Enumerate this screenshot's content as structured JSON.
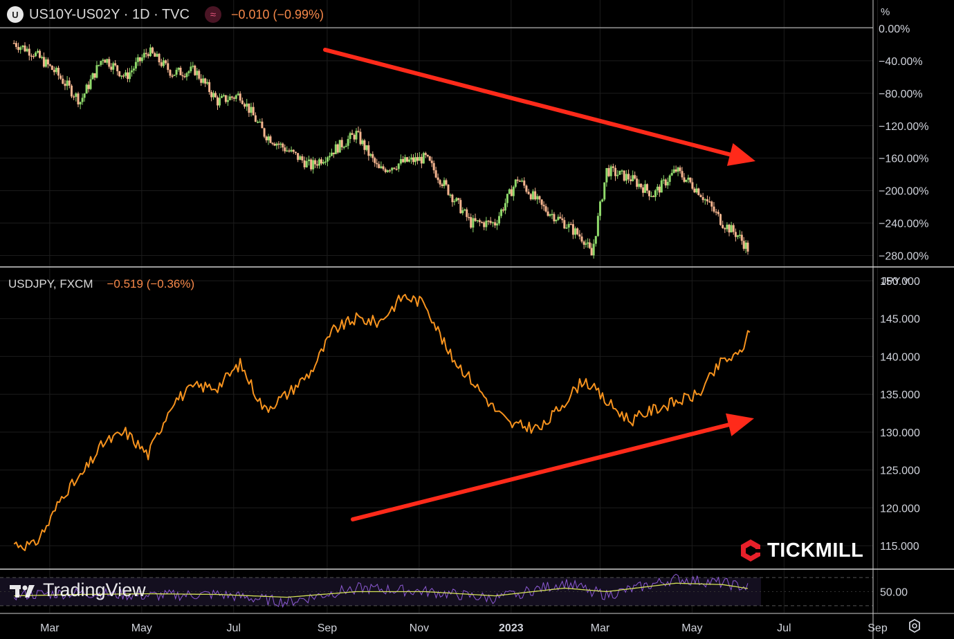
{
  "top_pane": {
    "symbol_badge": "U",
    "title": "US10Y-US02Y · 1D · TVC",
    "change": "−0.010 (−0.99%)",
    "unit": "%",
    "icon": "wave-indicator-icon"
  },
  "mid_pane": {
    "title": "USDJPY, FXCM",
    "change": "−0.519 (−0.36%)",
    "unit": "JPY ˅"
  },
  "branding": {
    "tickmill": "TICKMILL",
    "tradingview": "TradingView"
  },
  "colors": {
    "background": "#000000",
    "up_candle": "#8fd96b",
    "down_candle": "#f5b58f",
    "usdjpy_line": "#f7931e",
    "arrow": "#ff2a1a",
    "rsi_line": "#8e5bd6",
    "rsi_ma": "#d4e157"
  },
  "chart_data": [
    {
      "type": "candlestick",
      "title": "US10Y-US02Y · 1D · TVC",
      "ylabel": "%",
      "ylim": [
        -300,
        0
      ],
      "yticks": [
        "0.00%",
        "−40.00%",
        "−80.00%",
        "−120.00%",
        "−160.00%",
        "−200.00%",
        "−240.00%",
        "−280.00%"
      ],
      "ytick_values": [
        0,
        -40,
        -80,
        -120,
        -160,
        -200,
        -240,
        -280
      ],
      "x": [
        "2022-02-20",
        "2022-03-05",
        "2022-03-20",
        "2022-04-05",
        "2022-04-20",
        "2022-05-05",
        "2022-05-20",
        "2022-06-05",
        "2022-06-20",
        "2022-07-05",
        "2022-07-20",
        "2022-08-05",
        "2022-08-20",
        "2022-09-05",
        "2022-09-20",
        "2022-10-05",
        "2022-10-20",
        "2022-11-05",
        "2022-11-20",
        "2022-12-05",
        "2022-12-20",
        "2023-01-05",
        "2023-01-20",
        "2023-02-05",
        "2023-02-20",
        "2023-03-05",
        "2023-03-10",
        "2023-03-20",
        "2023-04-05",
        "2023-04-20",
        "2023-05-05",
        "2023-05-20",
        "2023-06-05",
        "2023-06-15",
        "2023-06-23"
      ],
      "values": [
        -18,
        -30,
        -55,
        -90,
        -35,
        -60,
        -28,
        -55,
        -52,
        -90,
        -82,
        -130,
        -150,
        -170,
        -150,
        -130,
        -175,
        -165,
        -160,
        -200,
        -240,
        -240,
        -185,
        -220,
        -240,
        -260,
        -280,
        -175,
        -185,
        -205,
        -175,
        -200,
        -240,
        -255,
        -275
      ],
      "note_series": "US10Y-US02Y spread (%), daily candles"
    },
    {
      "type": "line",
      "title": "USDJPY, FXCM",
      "ylabel": "JPY",
      "ylim": [
        112,
        151
      ],
      "yticks": [
        "150.000",
        "145.000",
        "140.000",
        "135.000",
        "130.000",
        "125.000",
        "120.000",
        "115.000"
      ],
      "ytick_values": [
        150,
        145,
        140,
        135,
        130,
        125,
        120,
        115
      ],
      "x": [
        "2022-02-20",
        "2022-03-05",
        "2022-03-15",
        "2022-03-25",
        "2022-04-05",
        "2022-04-20",
        "2022-05-05",
        "2022-05-20",
        "2022-06-05",
        "2022-06-20",
        "2022-07-05",
        "2022-07-20",
        "2022-08-05",
        "2022-08-20",
        "2022-09-05",
        "2022-09-20",
        "2022-10-05",
        "2022-10-20",
        "2022-11-05",
        "2022-11-20",
        "2022-12-05",
        "2022-12-20",
        "2023-01-05",
        "2023-01-15",
        "2023-02-05",
        "2023-02-20",
        "2023-03-05",
        "2023-03-20",
        "2023-04-05",
        "2023-04-20",
        "2023-05-05",
        "2023-05-20",
        "2023-06-05",
        "2023-06-15",
        "2023-06-23"
      ],
      "values": [
        115.3,
        115.0,
        118,
        122,
        124,
        128.5,
        130,
        127,
        134,
        136,
        136,
        139,
        133,
        135,
        138,
        143.5,
        145,
        144.5,
        148,
        147,
        140.5,
        137,
        133,
        131,
        130.5,
        134,
        137,
        134,
        131.5,
        133,
        134,
        135,
        139.5,
        140,
        143.2
      ]
    },
    {
      "type": "line",
      "title": "",
      "yticks": [
        "50.00"
      ],
      "ytick_values": [
        50
      ],
      "ylim": [
        20,
        80
      ],
      "series_role": [
        "oscillator",
        "moving average"
      ],
      "x": [
        "2022-02-20",
        "2022-04-05",
        "2022-05-20",
        "2022-07-05",
        "2022-08-20",
        "2022-10-05",
        "2022-11-20",
        "2023-01-05",
        "2023-02-20",
        "2023-03-20",
        "2023-05-05",
        "2023-06-05",
        "2023-06-23"
      ],
      "values": [
        45,
        48,
        44,
        46,
        35,
        55,
        50,
        40,
        62,
        45,
        68,
        62,
        55
      ],
      "ma_values": [
        44,
        46,
        47,
        46,
        42,
        50,
        50,
        44,
        55,
        50,
        62,
        60,
        54
      ]
    }
  ],
  "x_axis": {
    "labels": [
      "Mar",
      "May",
      "Jul",
      "Sep",
      "Nov",
      "2023",
      "Mar",
      "May",
      "Jul",
      "Sep"
    ],
    "bold_index": 5
  }
}
